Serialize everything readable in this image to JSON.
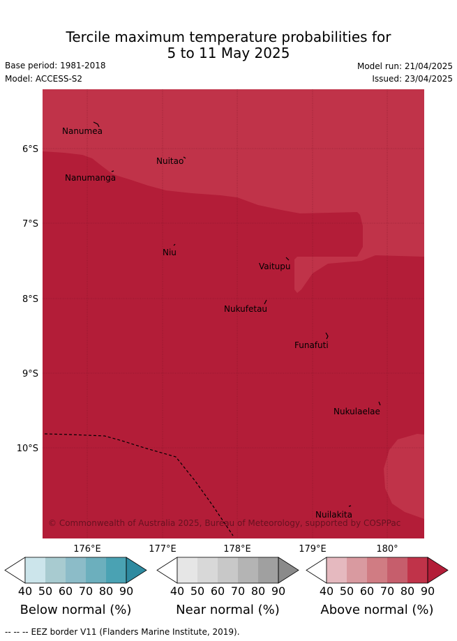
{
  "header": {
    "title_line1": "Tercile maximum temperature probabilities for",
    "title_line2": "5 to 11 May 2025",
    "base_period": "Base period: 1981-2018",
    "model": "Model: ACCESS-S2",
    "model_run": "Model run: 21/04/2025",
    "issued": "Issued: 23/04/2025"
  },
  "map": {
    "lat_ticks": [
      "6°S",
      "7°S",
      "8°S",
      "9°S",
      "10°S"
    ],
    "lon_ticks": [
      "176°E",
      "177°E",
      "178°E",
      "179°E",
      "180°"
    ],
    "places": [
      {
        "name": "Nanumea"
      },
      {
        "name": "Nuitao"
      },
      {
        "name": "Nanumanga"
      },
      {
        "name": "Niu"
      },
      {
        "name": "Vaitupu"
      },
      {
        "name": "Nukufetau"
      },
      {
        "name": "Funafuti"
      },
      {
        "name": "Nukulaelae"
      },
      {
        "name": "Nuilakita"
      }
    ],
    "copyright": "© Commonwealth of Australia 2025, Bureau of Meteorology, supported by COSPPac",
    "colors": {
      "above_80_90": "#c03349",
      "above_90": "#b31d38"
    }
  },
  "colorbars": [
    {
      "label": "Below normal (%)",
      "ticks": [
        "40",
        "50",
        "60",
        "70",
        "80",
        "90"
      ],
      "colors": [
        "#ffffff",
        "#cce5eb",
        "#a8cbd0",
        "#8cbcc8",
        "#6cafbd",
        "#4aa2b3",
        "#2e8aa0"
      ]
    },
    {
      "label": "Near normal (%)",
      "ticks": [
        "40",
        "50",
        "60",
        "70",
        "80",
        "90"
      ],
      "colors": [
        "#ffffff",
        "#e6e6e6",
        "#d8d8d8",
        "#c8c8c8",
        "#b4b4b4",
        "#a0a0a0",
        "#8a8a8a"
      ]
    },
    {
      "label": "Above normal (%)",
      "ticks": [
        "40",
        "50",
        "60",
        "70",
        "80",
        "90"
      ],
      "colors": [
        "#ffffff",
        "#e5b9bf",
        "#d99aa0",
        "#d07c83",
        "#c65e6c",
        "#c03349",
        "#b31d38"
      ]
    }
  ],
  "footer": {
    "legend_symbol": "-- -- --",
    "legend_text": "EEZ border V11 (Flanders Marine Institute, 2019)."
  }
}
